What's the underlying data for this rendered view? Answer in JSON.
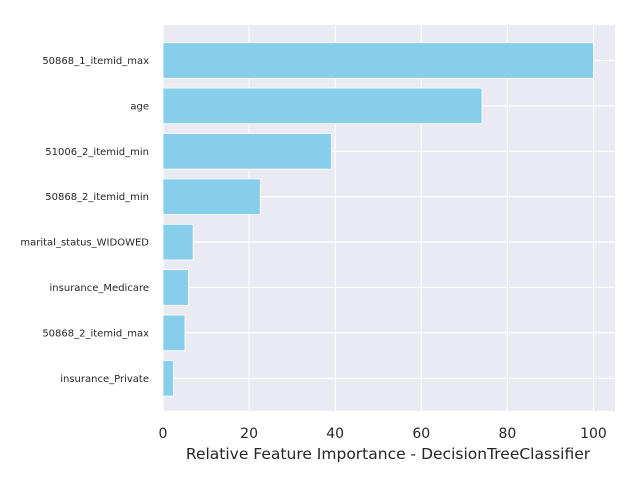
{
  "chart_data": {
    "type": "bar",
    "orientation": "horizontal",
    "title": "",
    "xlabel": "Relative Feature Importance - DecisionTreeClassifier",
    "ylabel": "",
    "xlim": [
      0,
      105
    ],
    "xticks": [
      0,
      20,
      40,
      60,
      80,
      100
    ],
    "grid": true,
    "categories": [
      "50868_1_itemid_max",
      "age",
      "51006_2_itemid_min",
      "50868_2_itemid_min",
      "marital_status_WIDOWED",
      "insurance_Medicare",
      "50868_2_itemid_max",
      "insurance_Private"
    ],
    "values": [
      100,
      74.1,
      39.1,
      22.6,
      7.0,
      5.9,
      5.1,
      2.4
    ],
    "colors": {
      "bar": "#87ceeb",
      "plot_background": "#eaeaf2",
      "grid": "#ffffff",
      "text": "#262626"
    }
  }
}
